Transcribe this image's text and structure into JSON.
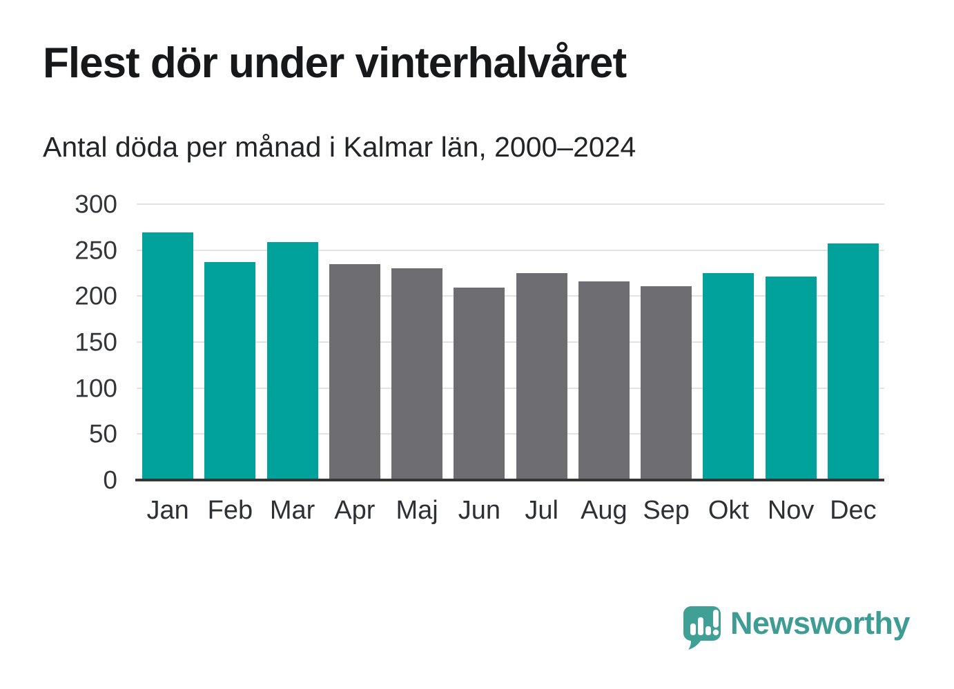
{
  "header": {
    "title": "Flest dör under vinterhalvåret",
    "subtitle": "Antal döda per månad i Kalmar län, 2000–2024"
  },
  "chart_data": {
    "type": "bar",
    "title": "Flest dör under vinterhalvåret",
    "subtitle": "Antal döda per månad i Kalmar län, 2000–2024",
    "categories": [
      "Jan",
      "Feb",
      "Mar",
      "Apr",
      "Maj",
      "Jun",
      "Jul",
      "Aug",
      "Sep",
      "Okt",
      "Nov",
      "Dec"
    ],
    "values": [
      269,
      237,
      259,
      235,
      230,
      209,
      225,
      216,
      211,
      225,
      221,
      257
    ],
    "bar_color_keys": [
      "winter",
      "winter",
      "winter",
      "summer",
      "summer",
      "summer",
      "summer",
      "summer",
      "summer",
      "winter",
      "winter",
      "winter"
    ],
    "colors": {
      "winter": "#00a29b",
      "summer": "#6e6e72"
    },
    "xlabel": "",
    "ylabel": "",
    "ylim": [
      0,
      300
    ],
    "yticks": [
      0,
      50,
      100,
      150,
      200,
      250,
      300
    ],
    "grid": "horizontal-only",
    "legend": "none",
    "gridline_color": "#e2e2e2",
    "axis_line_color": "#363636"
  },
  "footer": {
    "brand": "Newsworthy",
    "brand_color": "#3d9c94",
    "logo_icon": "speech-bubble-bar-chart-exclamation-icon"
  }
}
